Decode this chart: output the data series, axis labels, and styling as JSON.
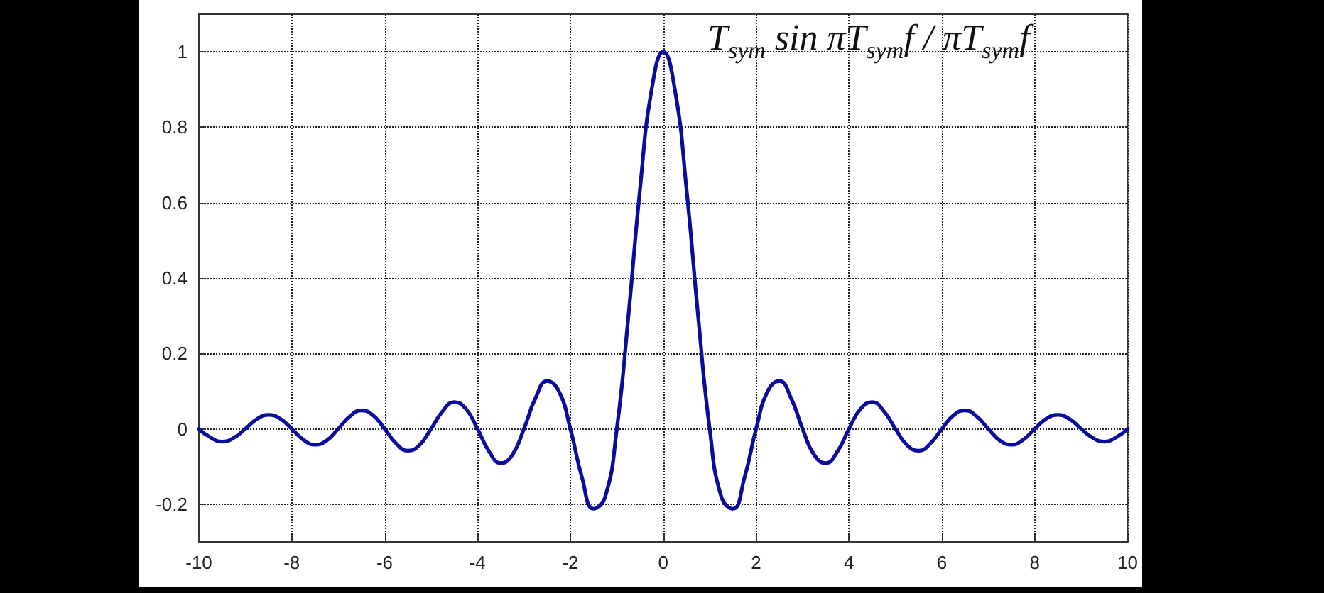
{
  "chart_data": {
    "type": "line",
    "xlim": [
      -10,
      10
    ],
    "xticks": [
      -10,
      -8,
      -6,
      -4,
      -2,
      0,
      2,
      4,
      6,
      8,
      10
    ],
    "ylim": [
      -0.3,
      1.1
    ],
    "yticks": [
      -0.2,
      0,
      0.2,
      0.4,
      0.6,
      0.8,
      1
    ],
    "grid": true,
    "marker": "none",
    "annotations": [
      "T$_{sym}$ sin πT$_{sym}$f / πT$_{sym}$f"
    ],
    "x": [
      -10,
      -9.75,
      -9.5,
      -9.25,
      -9,
      -8.75,
      -8.5,
      -8.25,
      -8,
      -7.75,
      -7.5,
      -7.25,
      -7,
      -6.75,
      -6.5,
      -6.25,
      -6,
      -5.75,
      -5.5,
      -5.25,
      -5,
      -4.75,
      -4.5,
      -4.25,
      -4,
      -3.75,
      -3.5,
      -3.25,
      -3,
      -2.75,
      -2.5,
      -2.25,
      -2,
      -1.75,
      -1.5,
      -1.25,
      -1,
      -0.75,
      -0.5,
      -0.25,
      0,
      0.25,
      0.5,
      0.75,
      1,
      1.25,
      1.5,
      1.75,
      2,
      2.25,
      2.5,
      2.75,
      3,
      3.25,
      3.5,
      3.75,
      4,
      4.25,
      4.5,
      4.75,
      5,
      5.25,
      5.5,
      5.75,
      6,
      6.25,
      6.5,
      6.75,
      7,
      7.25,
      7.5,
      7.75,
      8,
      8.25,
      8.5,
      8.75,
      9,
      9.25,
      9.5,
      9.75,
      10
    ],
    "series": [
      {
        "color": "#0c0c9c",
        "values": [
          0,
          -0.023,
          -0.034,
          -0.024,
          0,
          0.026,
          0.037,
          0.027,
          0,
          -0.029,
          -0.042,
          -0.031,
          0,
          0.033,
          0.049,
          0.036,
          0,
          -0.039,
          -0.058,
          -0.043,
          0,
          0.047,
          0.071,
          0.053,
          0,
          -0.06,
          -0.091,
          -0.069,
          0,
          0.082,
          0.127,
          0.1,
          0,
          -0.129,
          -0.212,
          -0.18,
          0,
          0.3,
          0.637,
          0.9,
          1,
          0.9,
          0.637,
          0.3,
          0,
          -0.18,
          -0.212,
          -0.129,
          0,
          0.1,
          0.127,
          0.082,
          0,
          -0.069,
          -0.091,
          -0.06,
          0,
          0.053,
          0.071,
          0.047,
          0,
          -0.043,
          -0.058,
          -0.039,
          0,
          0.036,
          0.049,
          0.033,
          0,
          -0.031,
          -0.042,
          -0.029,
          0,
          0.027,
          0.037,
          0.026,
          0,
          -0.024,
          -0.034,
          -0.023,
          0
        ]
      }
    ]
  }
}
